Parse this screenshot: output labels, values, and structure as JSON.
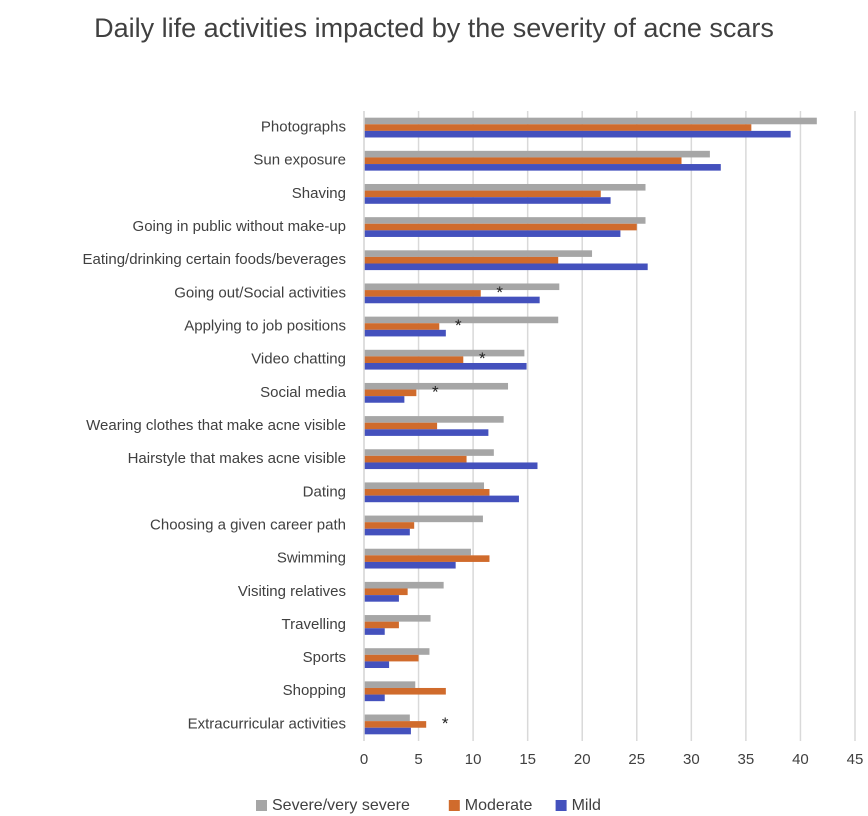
{
  "chart_data": {
    "type": "hbar",
    "title": "Daily life activities impacted by the severity of acne scars",
    "categories": [
      "Photographs",
      "Sun exposure",
      "Shaving",
      "Going in public without make-up",
      "Eating/drinking certain foods/beverages",
      "Going out/Social activities",
      "Applying to job positions",
      "Video chatting",
      "Social media",
      "Wearing clothes that make acne visible",
      "Hairstyle that makes acne visible",
      "Dating",
      "Choosing a given career path",
      "Swimming",
      "Visiting relatives",
      "Travelling",
      "Sports",
      "Shopping",
      "Extracurricular activities"
    ],
    "series": [
      {
        "name": "Severe/very severe",
        "color": "#a6a6a6",
        "values": [
          41.5,
          31.7,
          25.8,
          25.8,
          20.9,
          17.9,
          17.8,
          14.7,
          13.2,
          12.8,
          11.9,
          11.0,
          10.9,
          9.8,
          7.3,
          6.1,
          6.0,
          4.7,
          4.2
        ]
      },
      {
        "name": "Moderate",
        "color": "#d06b2c",
        "values": [
          35.5,
          29.1,
          21.7,
          25.0,
          17.8,
          10.7,
          6.9,
          9.1,
          4.8,
          6.7,
          9.4,
          11.5,
          4.6,
          11.5,
          4.0,
          3.2,
          5.0,
          7.5,
          5.7
        ]
      },
      {
        "name": "Mild",
        "color": "#4451bd",
        "values": [
          39.1,
          32.7,
          22.6,
          23.5,
          26.0,
          16.1,
          7.5,
          14.9,
          3.7,
          11.4,
          15.9,
          14.2,
          4.2,
          8.4,
          3.2,
          1.9,
          2.3,
          1.9,
          4.3
        ]
      }
    ],
    "markers": [
      null,
      null,
      null,
      null,
      null,
      "*",
      "*",
      "*",
      "*",
      null,
      null,
      null,
      null,
      null,
      null,
      null,
      null,
      null,
      "*"
    ],
    "xlim": [
      0,
      45
    ],
    "xticks": [
      0,
      5,
      10,
      15,
      20,
      25,
      30,
      35,
      40,
      45
    ],
    "grid": true,
    "legend": "bottom"
  }
}
